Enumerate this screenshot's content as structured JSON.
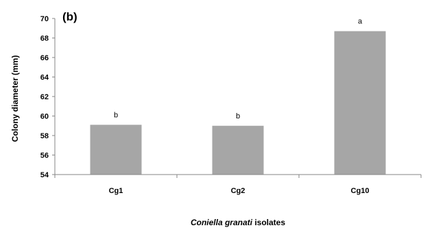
{
  "chart_data": {
    "type": "bar",
    "panel_label": "(b)",
    "title": "",
    "categories": [
      "Cg1",
      "Cg2",
      "Cg10"
    ],
    "values": [
      59.1,
      59.0,
      68.7
    ],
    "bar_labels": [
      "b",
      "b",
      "a"
    ],
    "bar_color": "#a6a6a6",
    "ylabel": "Colony diameter  (mm)",
    "xlabel_italic": "Coniella granati",
    "xlabel_rest": " isolates",
    "ylim": [
      54,
      70
    ],
    "yticks": [
      54,
      56,
      58,
      60,
      62,
      64,
      66,
      68,
      70
    ],
    "grid": false,
    "legend": "none"
  }
}
